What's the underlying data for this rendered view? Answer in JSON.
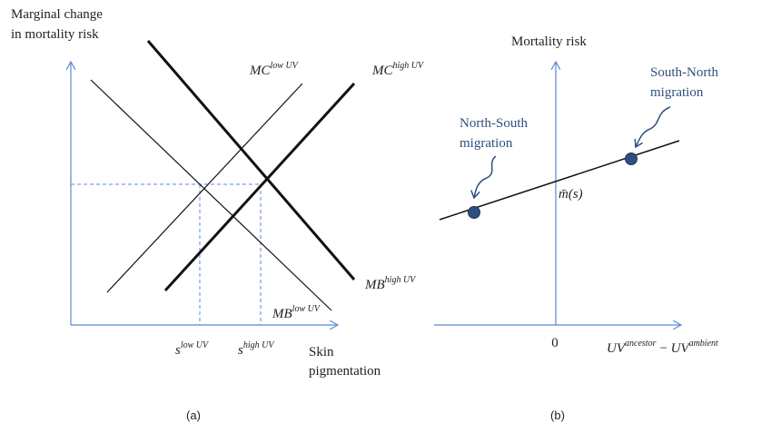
{
  "panels": [
    {
      "y_axis_label": [
        "Marginal change",
        "in mortality risk"
      ],
      "curves": [
        {
          "label": "MC",
          "superscript": "low UV"
        },
        {
          "label": "MC",
          "superscript": "high UV"
        },
        {
          "label": "MB",
          "superscript": "high UV"
        },
        {
          "label": "MB",
          "superscript": "low UV"
        }
      ],
      "x_markers": [
        {
          "label": "s",
          "superscript": "low UV"
        },
        {
          "label": "s",
          "superscript": "high UV"
        }
      ],
      "x_axis_label": [
        "Skin",
        "pigmentation"
      ],
      "caption": "(a)"
    },
    {
      "y_axis_label": "Mortality risk",
      "annotations": [
        {
          "lines": [
            "South-North",
            "migration"
          ]
        },
        {
          "lines": [
            "North-South",
            "migration"
          ]
        }
      ],
      "intercept_label": "m̄(s)",
      "origin_label": "0",
      "x_axis_label": {
        "terms": [
          {
            "base": "UV",
            "superscript": "ancestor"
          },
          {
            "base": "UV",
            "superscript": "ambient"
          }
        ],
        "operator": "−"
      },
      "caption": "(b)"
    }
  ]
}
